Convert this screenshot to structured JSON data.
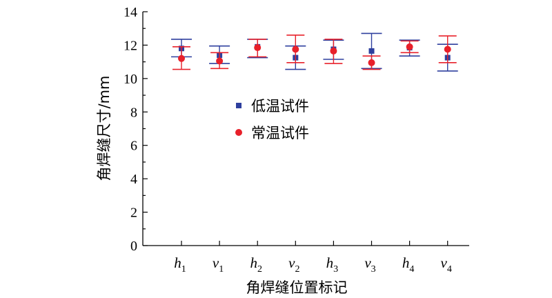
{
  "chart_data": {
    "type": "scatter",
    "xlabel": "角焊缝位置标记",
    "ylabel": "角焊缝尺寸/mm",
    "ylim": [
      0,
      14
    ],
    "yticks": [
      0,
      2,
      4,
      6,
      8,
      10,
      12,
      14
    ],
    "categories": [
      {
        "main": "h",
        "sub": "1"
      },
      {
        "main": "v",
        "sub": "1"
      },
      {
        "main": "h",
        "sub": "2"
      },
      {
        "main": "v",
        "sub": "2"
      },
      {
        "main": "h",
        "sub": "3"
      },
      {
        "main": "v",
        "sub": "3"
      },
      {
        "main": "h",
        "sub": "4"
      },
      {
        "main": "v",
        "sub": "4"
      }
    ],
    "legend_position": "center",
    "series": [
      {
        "name": "低温试件",
        "marker": "square",
        "color": "#2e3f9e",
        "values": [
          11.8,
          11.4,
          11.9,
          11.25,
          11.75,
          11.65,
          11.85,
          11.25
        ],
        "err_low": [
          11.3,
          10.9,
          11.25,
          10.55,
          11.15,
          10.6,
          11.35,
          10.45
        ],
        "err_high": [
          12.35,
          11.95,
          12.35,
          11.95,
          12.3,
          12.7,
          12.3,
          12.05
        ]
      },
      {
        "name": "常温试件",
        "marker": "circle",
        "color": "#e8202a",
        "values": [
          11.2,
          11.05,
          11.85,
          11.75,
          11.65,
          10.95,
          11.9,
          11.75
        ],
        "err_low": [
          10.55,
          10.6,
          11.3,
          10.95,
          10.9,
          10.55,
          11.55,
          10.95
        ],
        "err_high": [
          11.9,
          11.55,
          12.35,
          12.6,
          12.35,
          11.35,
          12.25,
          12.55
        ]
      }
    ]
  }
}
